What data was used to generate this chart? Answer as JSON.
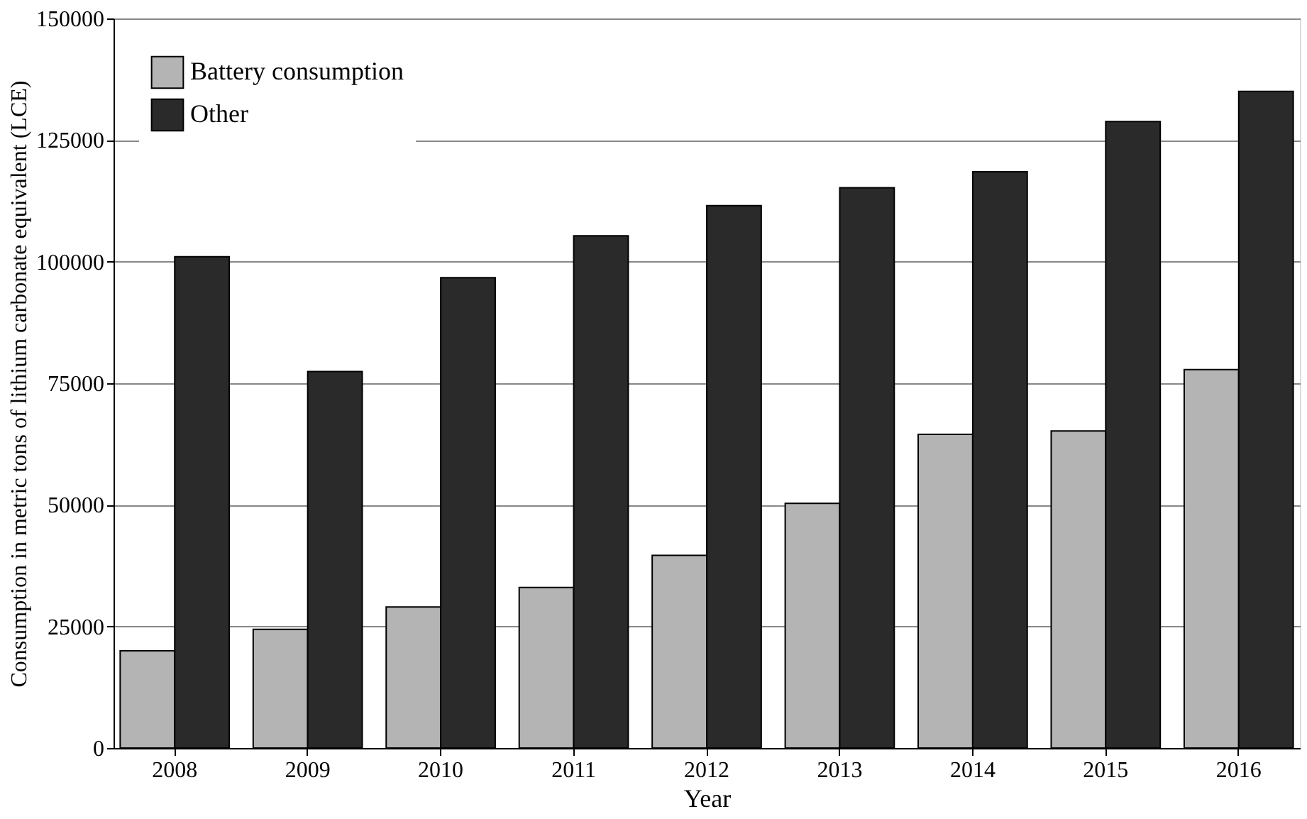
{
  "chart_data": {
    "type": "bar",
    "xlabel": "Year",
    "ylabel": "Consumption in metric tons of lithium carbonate equivalent (LCE)",
    "categories": [
      "2008",
      "2009",
      "2010",
      "2011",
      "2012",
      "2013",
      "2014",
      "2015",
      "2016"
    ],
    "series": [
      {
        "name": "Battery consumption",
        "color": "#b4b4b4",
        "values": [
          20000,
          24400,
          29000,
          33000,
          39600,
          50300,
          64500,
          65200,
          77800
        ]
      },
      {
        "name": "Other",
        "color": "#2a2a2a",
        "values": [
          101000,
          77400,
          96700,
          105300,
          111500,
          115200,
          118500,
          128800,
          135000
        ]
      }
    ],
    "ylim": [
      0,
      150000
    ],
    "yticks": [
      0,
      25000,
      50000,
      75000,
      100000,
      125000,
      150000
    ],
    "grid": "y",
    "legend": "top left"
  }
}
